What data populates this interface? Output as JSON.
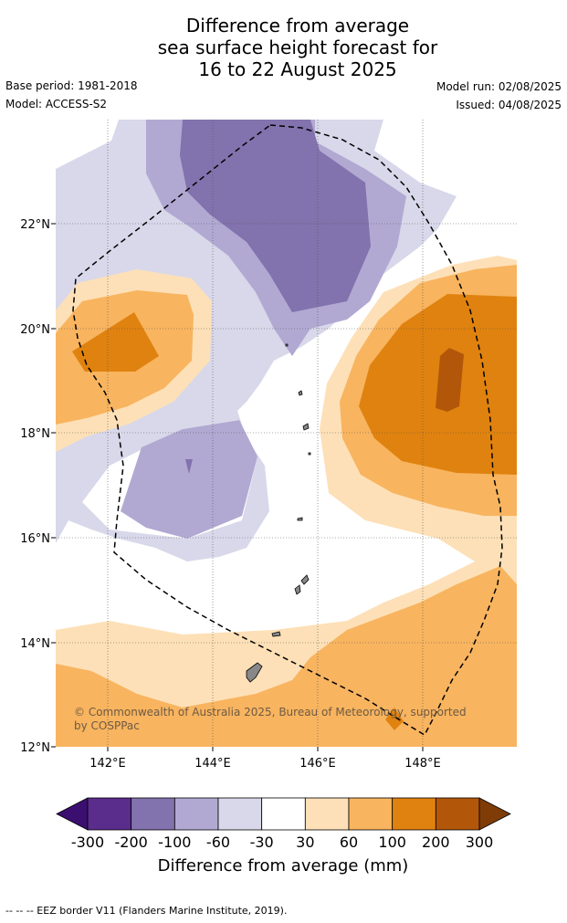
{
  "title": {
    "line1": "Difference from average",
    "line2": "sea surface height forecast for",
    "line3": "16 to 22 August 2025"
  },
  "meta": {
    "base_period": "Base period: 1981-2018",
    "model": "Model: ACCESS-S2",
    "model_run": "Model run: 02/08/2025",
    "issued": "Issued: 04/08/2025"
  },
  "map": {
    "lat_labels": [
      "22°N",
      "20°N",
      "18°N",
      "16°N",
      "14°N",
      "12°N"
    ],
    "lon_labels": [
      "142°E",
      "144°E",
      "146°E",
      "148°E"
    ],
    "lat_range": [
      12,
      24
    ],
    "lon_range": [
      141,
      149.8
    ],
    "copyright_line1": "© Commonwealth of Australia 2025, Bureau of Meteorology, supported",
    "copyright_line2": "by COSPPac"
  },
  "colorbar": {
    "tick_labels": [
      "-300",
      "-200",
      "-100",
      "-60",
      "-30",
      "30",
      "60",
      "100",
      "200",
      "300"
    ],
    "colors": [
      "#3b0f6f",
      "#5a2c8c",
      "#8272ad",
      "#b1a9d2",
      "#d8d8ea",
      "#ffffff",
      "#fde0b7",
      "#f8b45f",
      "#e0820f",
      "#b2570a",
      "#7f3c06"
    ],
    "title": "Difference from average (mm)"
  },
  "footer": {
    "text": "--  --  -- EEZ border V11 (Flanders Marine Institute, 2019)."
  }
}
